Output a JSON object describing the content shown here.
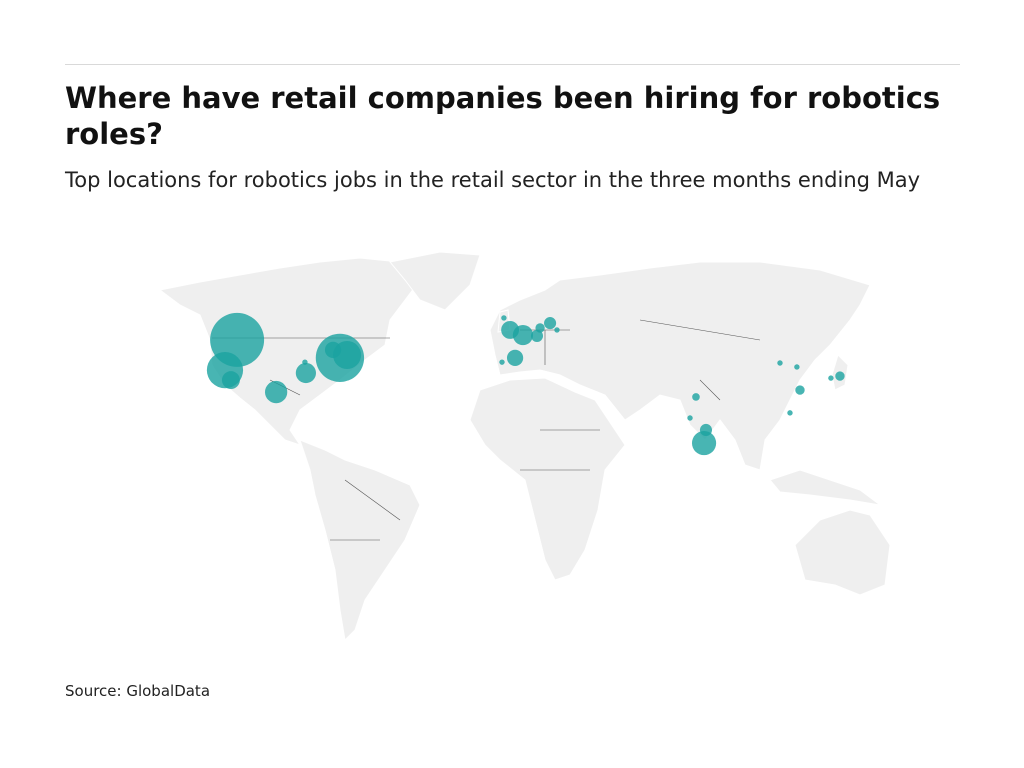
{
  "chart_data": {
    "type": "bubble-map",
    "title": "Where have retail companies been hiring for robotics roles?",
    "subtitle": "Top locations for robotics jobs in the retail sector in the three months ending May",
    "source": "Source: GlobalData",
    "color": "#1aa3a0",
    "points": [
      {
        "lon": -113.4,
        "lat": 47.4,
        "value": 100
      },
      {
        "lon": -118.5,
        "lat": 36.8,
        "value": 45
      },
      {
        "lon": -116,
        "lat": 33.3,
        "value": 11
      },
      {
        "lon": -97,
        "lat": 29.1,
        "value": 17
      },
      {
        "lon": -84.5,
        "lat": 35.8,
        "value": 14
      },
      {
        "lon": -70.2,
        "lat": 41.1,
        "value": 80
      },
      {
        "lon": -67.2,
        "lat": 42.1,
        "value": 27
      },
      {
        "lon": -73.1,
        "lat": 43.9,
        "value": 9
      },
      {
        "lon": -84.9,
        "lat": 39.6,
        "value": 1
      },
      {
        "lon": 1.3,
        "lat": 50.9,
        "value": 11
      },
      {
        "lon": 6.7,
        "lat": 49.1,
        "value": 14
      },
      {
        "lon": 3.4,
        "lat": 41.1,
        "value": 9
      },
      {
        "lon": 12.6,
        "lat": 48.8,
        "value": 5
      },
      {
        "lon": 18.1,
        "lat": 53.3,
        "value": 5
      },
      {
        "lon": 13.9,
        "lat": 51.6,
        "value": 3
      },
      {
        "lon": -1.3,
        "lat": 55.1,
        "value": 1
      },
      {
        "lon": -2.1,
        "lat": 39.6,
        "value": 1
      },
      {
        "lon": 21,
        "lat": 50.9,
        "value": 1
      },
      {
        "lon": 79.4,
        "lat": 27.4,
        "value": 2
      },
      {
        "lon": 82.8,
        "lat": 11.2,
        "value": 20
      },
      {
        "lon": 83.6,
        "lat": 15.8,
        "value": 5
      },
      {
        "lon": 76.9,
        "lat": 20,
        "value": 1
      },
      {
        "lon": 114.7,
        "lat": 39.3,
        "value": 1
      },
      {
        "lon": 121.8,
        "lat": 37.9,
        "value": 1
      },
      {
        "lon": 123.1,
        "lat": 29.8,
        "value": 3
      },
      {
        "lon": 118.9,
        "lat": 21.8,
        "value": 1
      },
      {
        "lon": 139.9,
        "lat": 34.7,
        "value": 3
      },
      {
        "lon": 136.1,
        "lat": 34,
        "value": 1
      }
    ]
  }
}
